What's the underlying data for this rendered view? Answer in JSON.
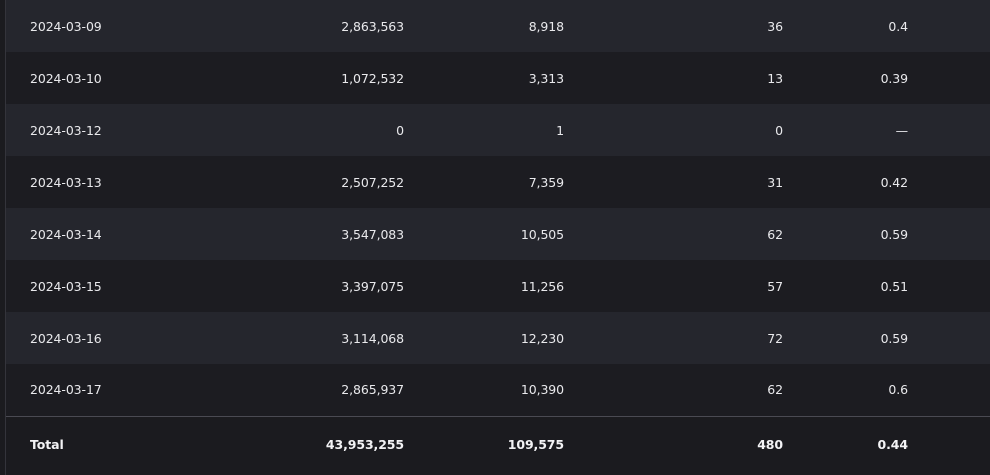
{
  "rows": [
    {
      "date": "2024-03-09",
      "a": "2,863,563",
      "b": "8,918",
      "c": "36",
      "d": "0.4"
    },
    {
      "date": "2024-03-10",
      "a": "1,072,532",
      "b": "3,313",
      "c": "13",
      "d": "0.39"
    },
    {
      "date": "2024-03-12",
      "a": "0",
      "b": "1",
      "c": "0",
      "d": "—"
    },
    {
      "date": "2024-03-13",
      "a": "2,507,252",
      "b": "7,359",
      "c": "31",
      "d": "0.42"
    },
    {
      "date": "2024-03-14",
      "a": "3,547,083",
      "b": "10,505",
      "c": "62",
      "d": "0.59"
    },
    {
      "date": "2024-03-15",
      "a": "3,397,075",
      "b": "11,256",
      "c": "57",
      "d": "0.51"
    },
    {
      "date": "2024-03-16",
      "a": "3,114,068",
      "b": "12,230",
      "c": "72",
      "d": "0.59"
    },
    {
      "date": "2024-03-17",
      "a": "2,865,937",
      "b": "10,390",
      "c": "62",
      "d": "0.6"
    }
  ],
  "total": {
    "label": "Total",
    "a": "43,953,255",
    "b": "109,575",
    "c": "480",
    "d": "0.44"
  },
  "colors": {
    "row_odd": "#25262d",
    "row_even": "#1c1c21",
    "text": "#e9e9ec"
  }
}
